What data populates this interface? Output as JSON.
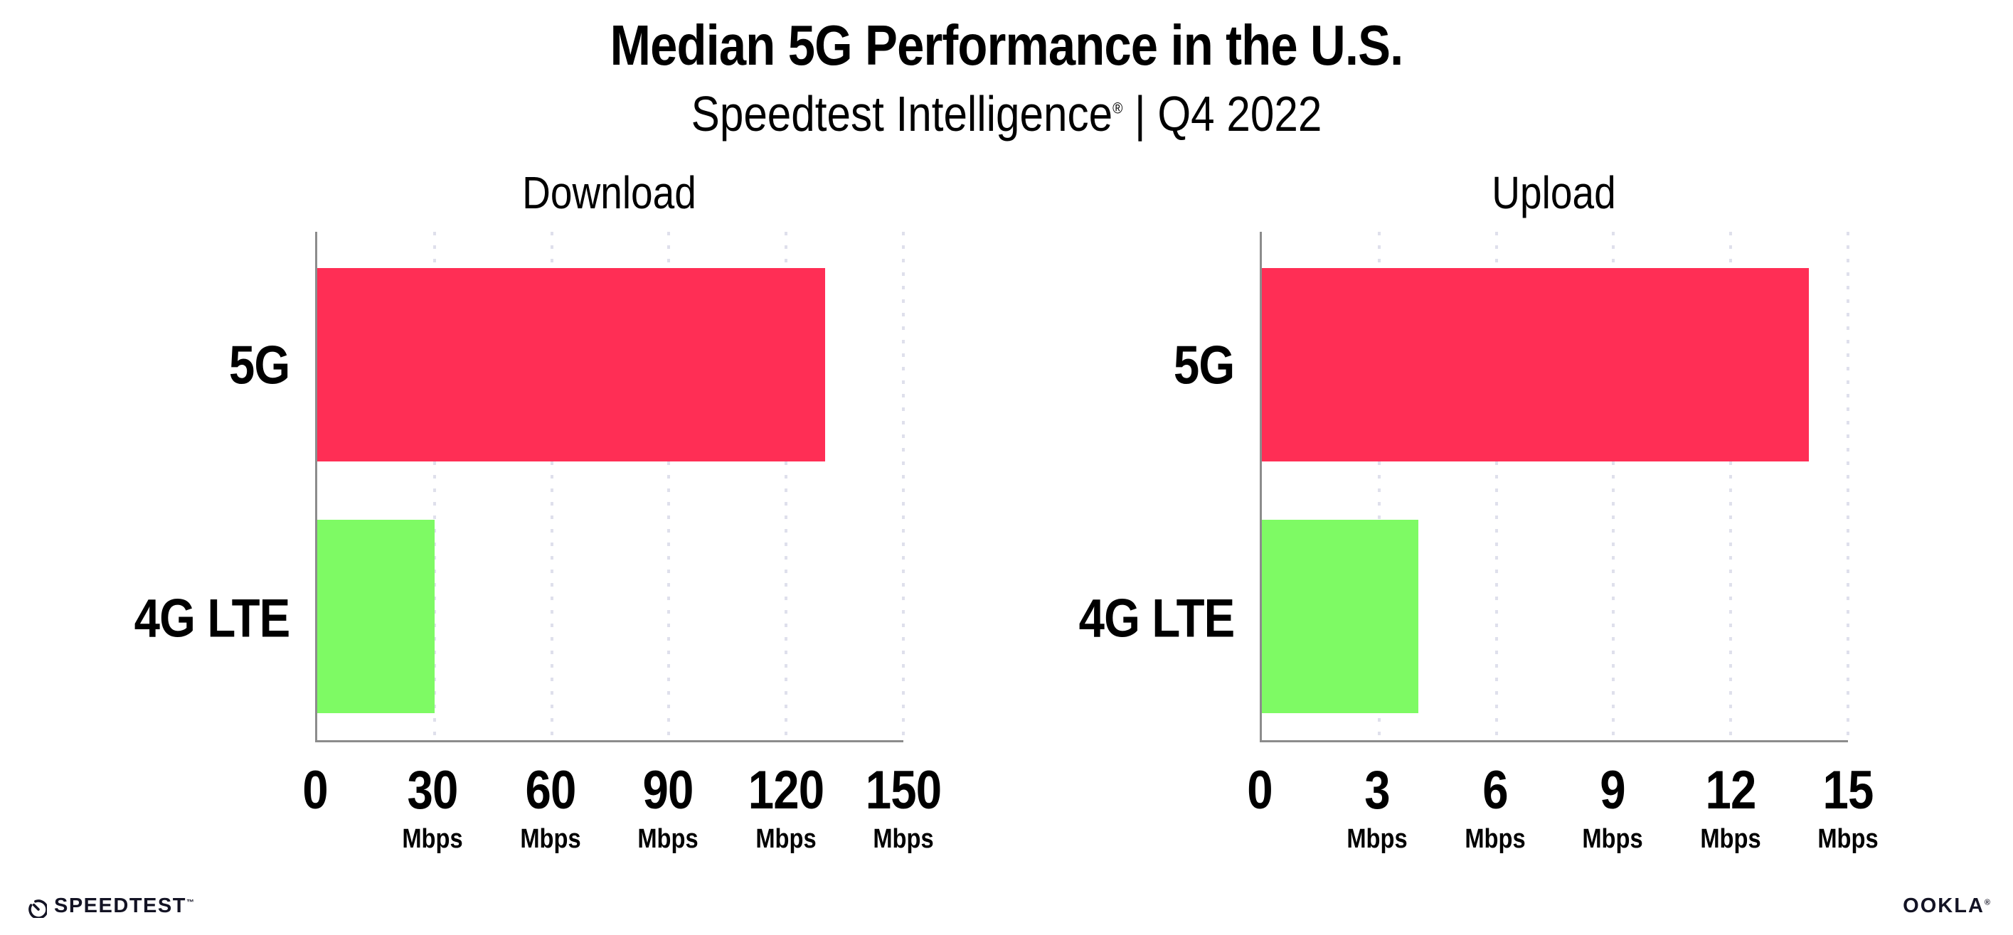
{
  "header": {
    "title": "Median 5G Performance in the U.S.",
    "subtitle_brand": "Speedtest Intelligence",
    "subtitle_reg": "®",
    "subtitle_rest": " | Q4 2022"
  },
  "chart_data": [
    {
      "type": "bar",
      "orientation": "horizontal",
      "title": "Download",
      "categories": [
        "5G",
        "4G LTE"
      ],
      "values": [
        130,
        30
      ],
      "unit": "Mbps",
      "colors": [
        "#FF2E55",
        "#7EFA64"
      ],
      "xlim": [
        0,
        150
      ],
      "xticks": [
        0,
        30,
        60,
        90,
        120,
        150
      ],
      "xtick_unit_label": "Mbps",
      "grid": "vertical dotted gridlines at each tick",
      "legend": "none"
    },
    {
      "type": "bar",
      "orientation": "horizontal",
      "title": "Upload",
      "categories": [
        "5G",
        "4G LTE"
      ],
      "values": [
        14,
        4
      ],
      "unit": "Mbps",
      "colors": [
        "#FF2E55",
        "#7EFA64"
      ],
      "xlim": [
        0,
        15
      ],
      "xticks": [
        0,
        3,
        6,
        9,
        12,
        15
      ],
      "xtick_unit_label": "Mbps",
      "grid": "vertical dotted gridlines at each tick",
      "legend": "none"
    }
  ],
  "footer": {
    "speedtest_wordmark": "SPEEDTEST",
    "speedtest_trademark": "™",
    "ookla_wordmark": "OOKLA",
    "ookla_registered": "®"
  },
  "style_colors": {
    "bar_5g": "#FF2E55",
    "bar_4g_lte": "#7EFA64",
    "gridline": "#DFE0EC",
    "axis_spine": "#8C8C8C",
    "text": "#000000"
  }
}
